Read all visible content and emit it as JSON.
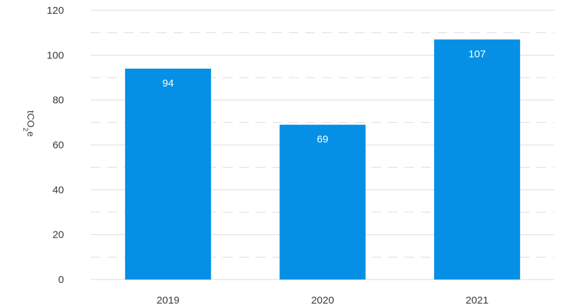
{
  "chart_data": {
    "type": "bar",
    "categories": [
      "2019",
      "2020",
      "2021"
    ],
    "values": [
      94,
      69,
      107
    ],
    "data_labels": [
      "94",
      "69",
      "107"
    ],
    "title": "",
    "xlabel": "",
    "ylabel": "tCO2e",
    "ylabel_parts": {
      "main": "tCO",
      "sub": "2",
      "tail": "e"
    },
    "ylim": [
      0,
      120
    ],
    "yticks": [
      0,
      20,
      40,
      60,
      80,
      100,
      120
    ],
    "ytick_labels": [
      "0",
      "20",
      "40",
      "60",
      "80",
      "100",
      "120"
    ],
    "minor_gridlines": "dashed",
    "grid": true,
    "legend": "none",
    "bar_color": "#0590e6",
    "grid_color": "#dcdcdc"
  }
}
